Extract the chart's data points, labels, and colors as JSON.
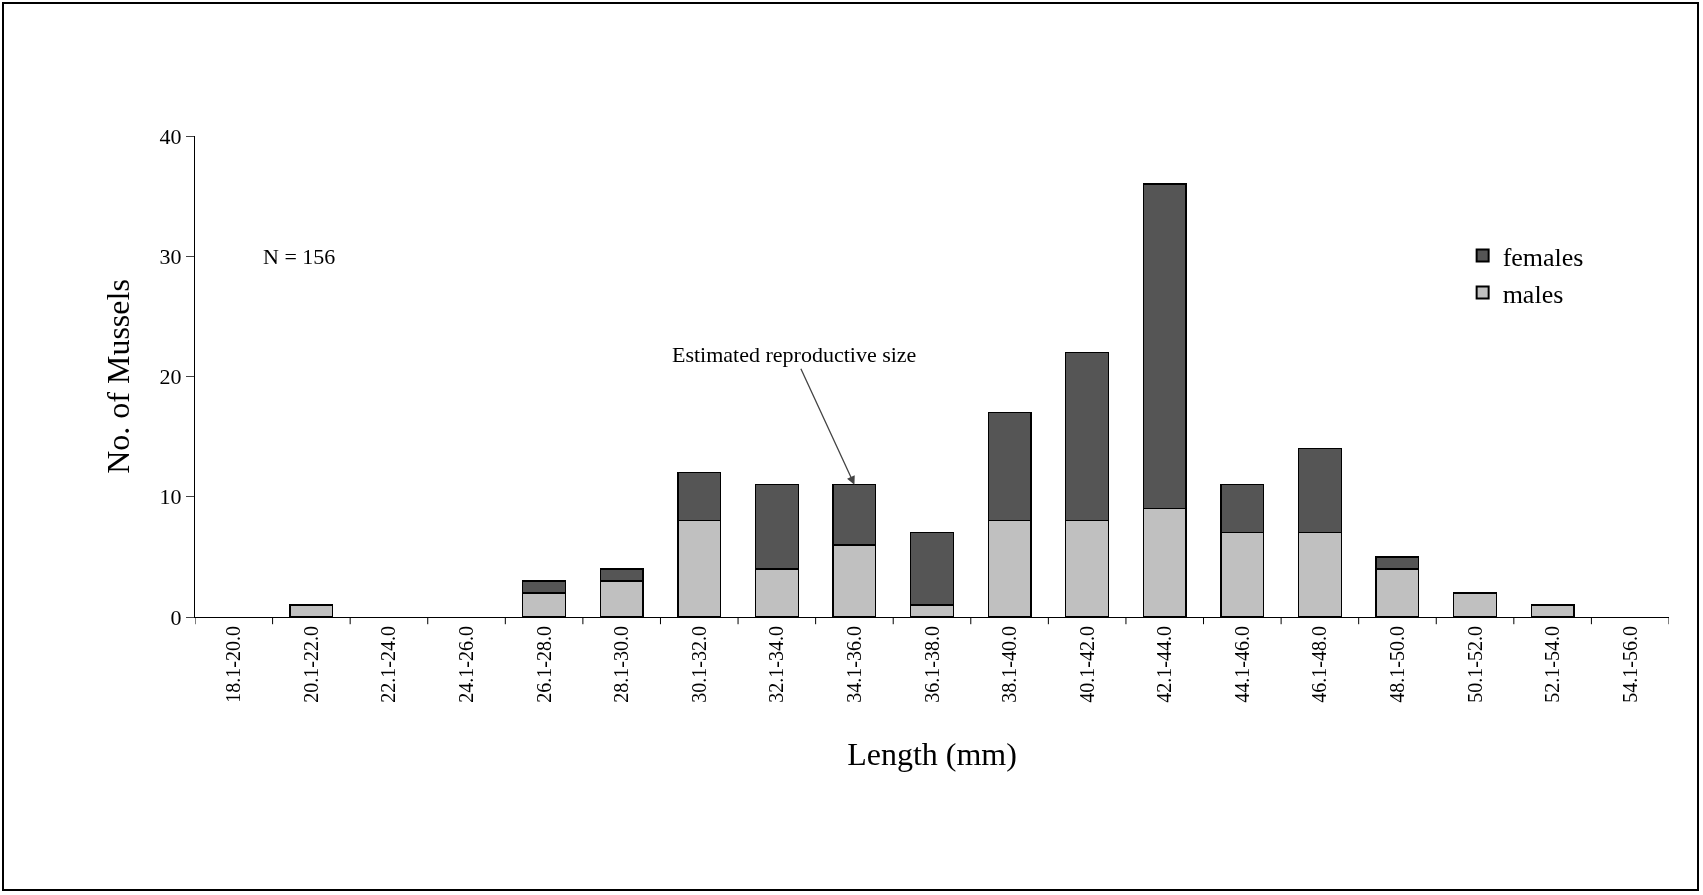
{
  "chart_data": {
    "type": "bar",
    "stacked": true,
    "xlabel": "Length (mm)",
    "ylabel": "No. of Mussels",
    "categories": [
      "18.1-20.0",
      "20.1-22.0",
      "22.1-24.0",
      "24.1-26.0",
      "26.1-28.0",
      "28.1-30.0",
      "30.1-32.0",
      "32.1-34.0",
      "34.1-36.0",
      "36.1-38.0",
      "38.1-40.0",
      "40.1-42.0",
      "42.1-44.0",
      "44.1-46.0",
      "46.1-48.0",
      "48.1-50.0",
      "50.1-52.0",
      "52.1-54.0",
      "54.1-56.0"
    ],
    "series": [
      {
        "name": "males",
        "color": "#c0c0c0",
        "values": [
          0,
          1,
          0,
          0,
          2,
          3,
          8,
          4,
          6,
          1,
          8,
          8,
          9,
          7,
          7,
          4,
          2,
          1,
          0
        ]
      },
      {
        "name": "females",
        "color": "#555555",
        "values": [
          0,
          0,
          0,
          0,
          1,
          1,
          4,
          7,
          5,
          6,
          9,
          14,
          27,
          4,
          7,
          1,
          0,
          0,
          0
        ]
      }
    ],
    "ylim": [
      0,
      40
    ],
    "yticks": [
      0,
      10,
      20,
      30,
      40
    ],
    "grid": false,
    "legend": "top right",
    "annotations": [
      "N = 156",
      {
        "text": "Estimated reproductive size",
        "x": "34.1-36.0",
        "y": 11
      }
    ]
  }
}
